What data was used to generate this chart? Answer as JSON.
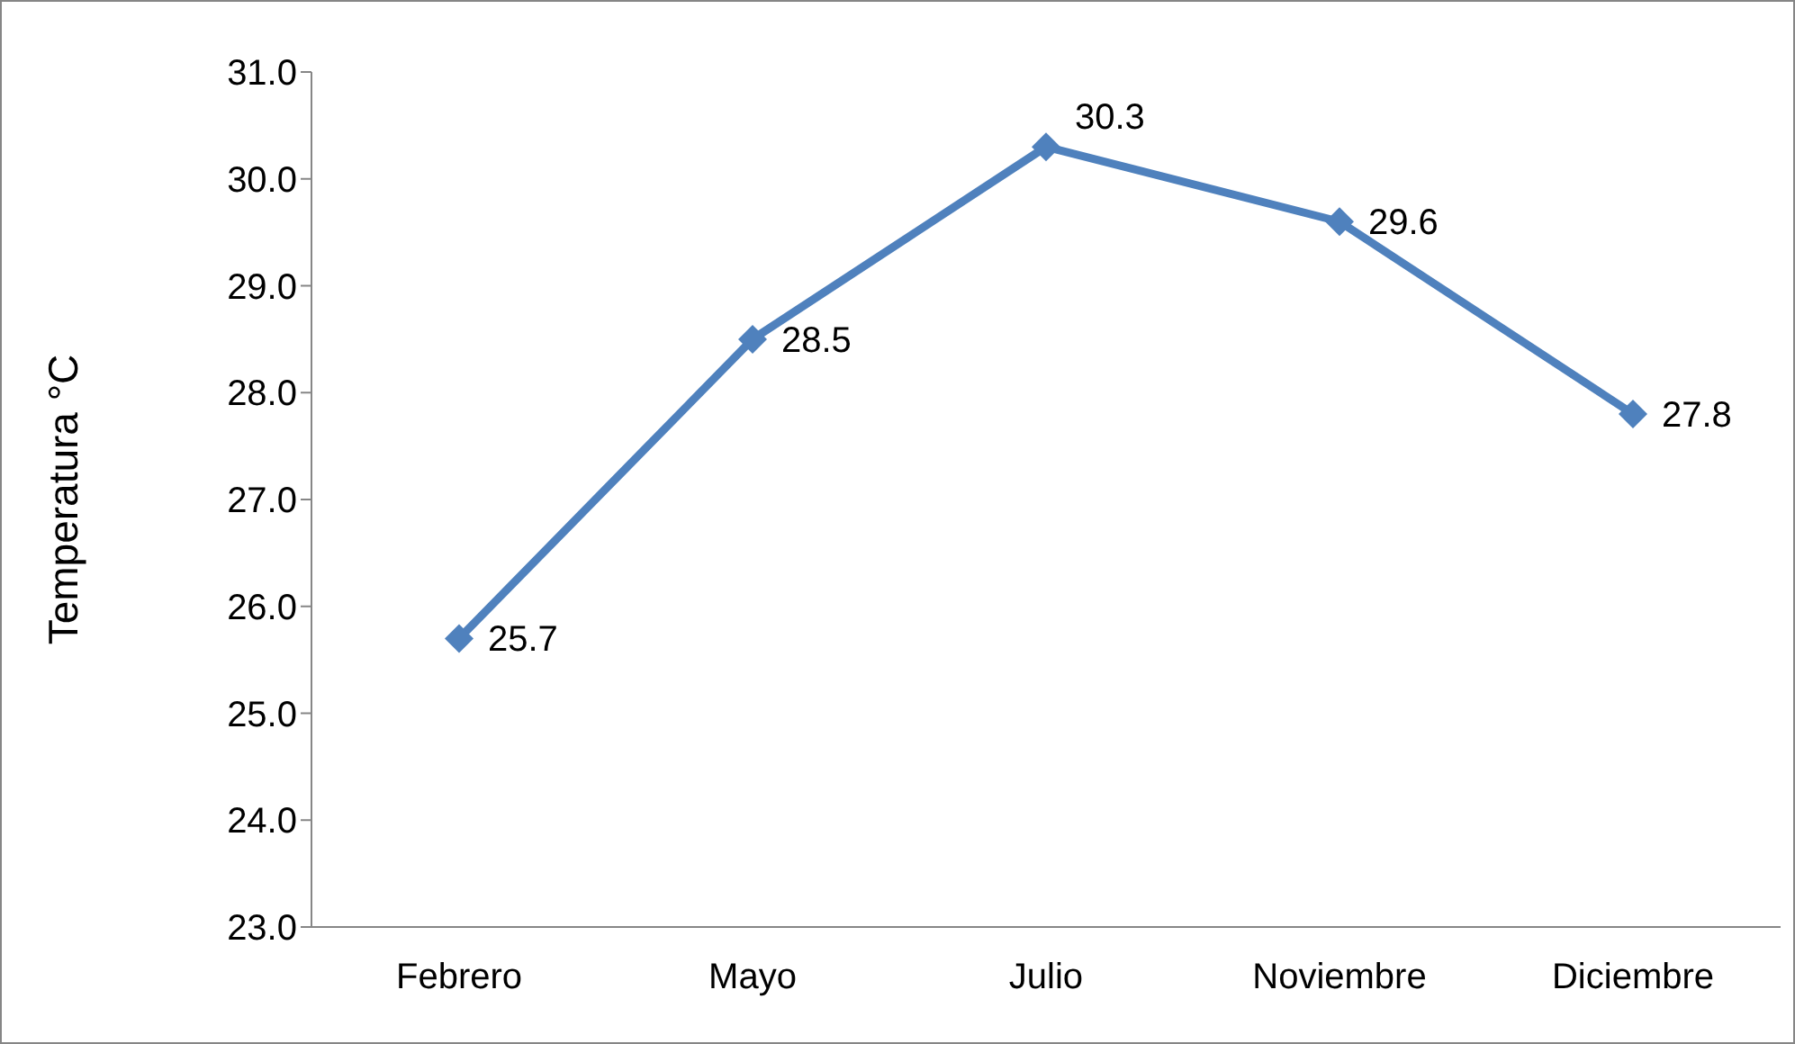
{
  "chart_data": {
    "type": "line",
    "ylabel": "Temperatura °C",
    "categories": [
      "Febrero",
      "Mayo",
      "Julio",
      "Noviembre",
      "Diciembre"
    ],
    "series": [
      {
        "color": "#4f81bd",
        "values": [
          25.7,
          28.5,
          30.3,
          29.6,
          27.8
        ]
      }
    ],
    "ylim": [
      23,
      31
    ],
    "yticks": [
      {
        "value": 23,
        "label": "23.0"
      },
      {
        "value": 24,
        "label": "24.0"
      },
      {
        "value": 25,
        "label": "25.0"
      },
      {
        "value": 26,
        "label": "26.0"
      },
      {
        "value": 27,
        "label": "27.0"
      },
      {
        "value": 28,
        "label": "28.0"
      },
      {
        "value": 29,
        "label": "29.0"
      },
      {
        "value": 30,
        "label": "30.0"
      },
      {
        "value": 31,
        "label": "31.0"
      }
    ],
    "grid": false,
    "legend": false,
    "marker": "diamond",
    "line_style": "solid",
    "data_labels": true
  }
}
